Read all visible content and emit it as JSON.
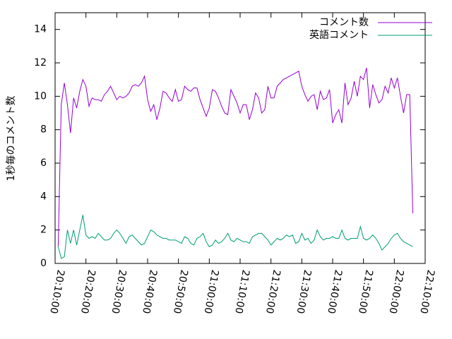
{
  "chart_data": {
    "type": "line",
    "ylabel": "1秒毎のコメント数",
    "xlim": [
      "20:10:00",
      "22:10:00"
    ],
    "xticks": [
      "20:10:00",
      "20:20:00",
      "20:30:00",
      "20:40:00",
      "20:50:00",
      "21:00:00",
      "21:10:00",
      "21:20:00",
      "21:30:00",
      "21:40:00",
      "21:50:00",
      "22:00:00",
      "22:10:00"
    ],
    "ylim": [
      0,
      15
    ],
    "yticks": [
      0,
      2,
      4,
      6,
      8,
      10,
      12,
      14
    ],
    "legend": "top-right",
    "x": [
      "20:11:00",
      "20:12:00",
      "20:13:00",
      "20:14:00",
      "20:15:00",
      "20:16:00",
      "20:17:00",
      "20:18:00",
      "20:19:00",
      "20:20:00",
      "20:21:00",
      "20:22:00",
      "20:23:00",
      "20:24:00",
      "20:25:00",
      "20:26:00",
      "20:27:00",
      "20:28:00",
      "20:29:00",
      "20:30:00",
      "20:31:00",
      "20:32:00",
      "20:33:00",
      "20:34:00",
      "20:35:00",
      "20:36:00",
      "20:37:00",
      "20:38:00",
      "20:39:00",
      "20:40:00",
      "20:41:00",
      "20:42:00",
      "20:43:00",
      "20:44:00",
      "20:45:00",
      "20:46:00",
      "20:47:00",
      "20:48:00",
      "20:49:00",
      "20:50:00",
      "20:51:00",
      "20:52:00",
      "20:53:00",
      "20:54:00",
      "20:55:00",
      "20:56:00",
      "20:57:00",
      "20:58:00",
      "20:59:00",
      "21:00:00",
      "21:01:00",
      "21:02:00",
      "21:03:00",
      "21:04:00",
      "21:05:00",
      "21:06:00",
      "21:07:00",
      "21:08:00",
      "21:09:00",
      "21:10:00",
      "21:11:00",
      "21:12:00",
      "21:13:00",
      "21:14:00",
      "21:15:00",
      "21:16:00",
      "21:17:00",
      "21:18:00",
      "21:19:00",
      "21:20:00",
      "21:21:00",
      "21:22:00",
      "21:23:00",
      "21:24:00",
      "21:25:00",
      "21:26:00",
      "21:27:00",
      "21:28:00",
      "21:29:00",
      "21:30:00",
      "21:31:00",
      "21:32:00",
      "21:33:00",
      "21:34:00",
      "21:35:00",
      "21:36:00",
      "21:37:00",
      "21:38:00",
      "21:39:00",
      "21:40:00",
      "21:41:00",
      "21:42:00",
      "21:43:00",
      "21:44:00",
      "21:45:00",
      "21:46:00",
      "21:47:00",
      "21:48:00",
      "21:49:00",
      "21:50:00",
      "21:51:00",
      "21:52:00",
      "21:53:00",
      "21:54:00",
      "21:55:00",
      "21:56:00",
      "21:57:00",
      "21:58:00",
      "21:59:00",
      "22:00:00",
      "22:01:00",
      "22:02:00",
      "22:03:00",
      "22:04:00",
      "22:05:00",
      "22:06:00"
    ],
    "series": [
      {
        "name": "コメント数",
        "color": "#9400d3",
        "values": [
          1.0,
          9.5,
          10.8,
          9.5,
          7.8,
          9.9,
          9.3,
          10.3,
          11.0,
          10.6,
          9.4,
          9.9,
          9.8,
          9.8,
          9.7,
          10.1,
          10.3,
          10.6,
          10.2,
          9.8,
          10.0,
          9.9,
          10.0,
          10.2,
          10.6,
          10.7,
          10.6,
          10.8,
          11.2,
          9.8,
          9.1,
          9.5,
          8.6,
          9.3,
          10.3,
          10.2,
          9.9,
          9.7,
          10.4,
          9.7,
          9.8,
          10.6,
          10.4,
          10.3,
          10.5,
          10.5,
          9.8,
          9.3,
          8.8,
          9.3,
          10.4,
          10.3,
          9.9,
          9.4,
          9.0,
          8.9,
          10.4,
          10.0,
          9.6,
          9.0,
          9.5,
          9.5,
          8.6,
          9.2,
          10.2,
          9.9,
          9.0,
          9.2,
          10.6,
          9.9,
          9.9,
          10.6,
          10.8,
          11.0,
          11.1,
          11.2,
          11.3,
          11.4,
          11.5,
          10.6,
          10.1,
          9.7,
          10.0,
          10.1,
          9.2,
          10.3,
          9.8,
          9.9,
          10.4,
          8.4,
          8.9,
          9.2,
          8.4,
          10.8,
          9.5,
          9.9,
          10.9,
          10.0,
          11.2,
          11.0,
          11.7,
          9.3,
          10.7,
          10.1,
          9.6,
          9.8,
          10.6,
          10.2,
          11.1,
          10.5,
          11.1,
          10.0,
          9.0,
          10.1,
          10.1,
          3.0
        ]
      },
      {
        "name": "英語コメント",
        "color": "#009e73",
        "values": [
          1.0,
          0.3,
          0.4,
          2.0,
          1.2,
          2.0,
          1.1,
          2.0,
          2.9,
          1.7,
          1.5,
          1.6,
          1.5,
          1.8,
          1.6,
          1.4,
          1.4,
          1.5,
          1.8,
          2.0,
          1.8,
          1.5,
          1.2,
          1.6,
          1.7,
          1.5,
          1.3,
          1.1,
          1.2,
          1.6,
          2.0,
          1.9,
          1.7,
          1.6,
          1.5,
          1.5,
          1.4,
          1.4,
          1.4,
          1.3,
          1.2,
          1.6,
          1.5,
          1.2,
          1.1,
          1.5,
          1.6,
          1.8,
          1.3,
          1.0,
          1.1,
          1.4,
          1.2,
          1.3,
          1.5,
          1.8,
          1.4,
          1.3,
          1.5,
          1.4,
          1.3,
          1.3,
          1.2,
          1.6,
          1.7,
          1.8,
          1.8,
          1.6,
          1.4,
          1.1,
          1.3,
          1.5,
          1.4,
          1.5,
          1.7,
          1.6,
          1.7,
          1.2,
          1.3,
          1.8,
          1.4,
          1.5,
          1.2,
          1.4,
          2.0,
          1.6,
          1.4,
          1.5,
          1.5,
          1.6,
          1.5,
          1.5,
          2.0,
          1.5,
          1.4,
          1.5,
          1.5,
          1.5,
          2.2,
          1.5,
          1.4,
          1.5,
          1.7,
          1.5,
          1.2,
          0.8,
          1.0,
          1.2,
          1.5,
          1.7,
          1.8,
          1.5,
          1.3,
          1.2,
          1.1,
          1.0
        ]
      }
    ]
  }
}
